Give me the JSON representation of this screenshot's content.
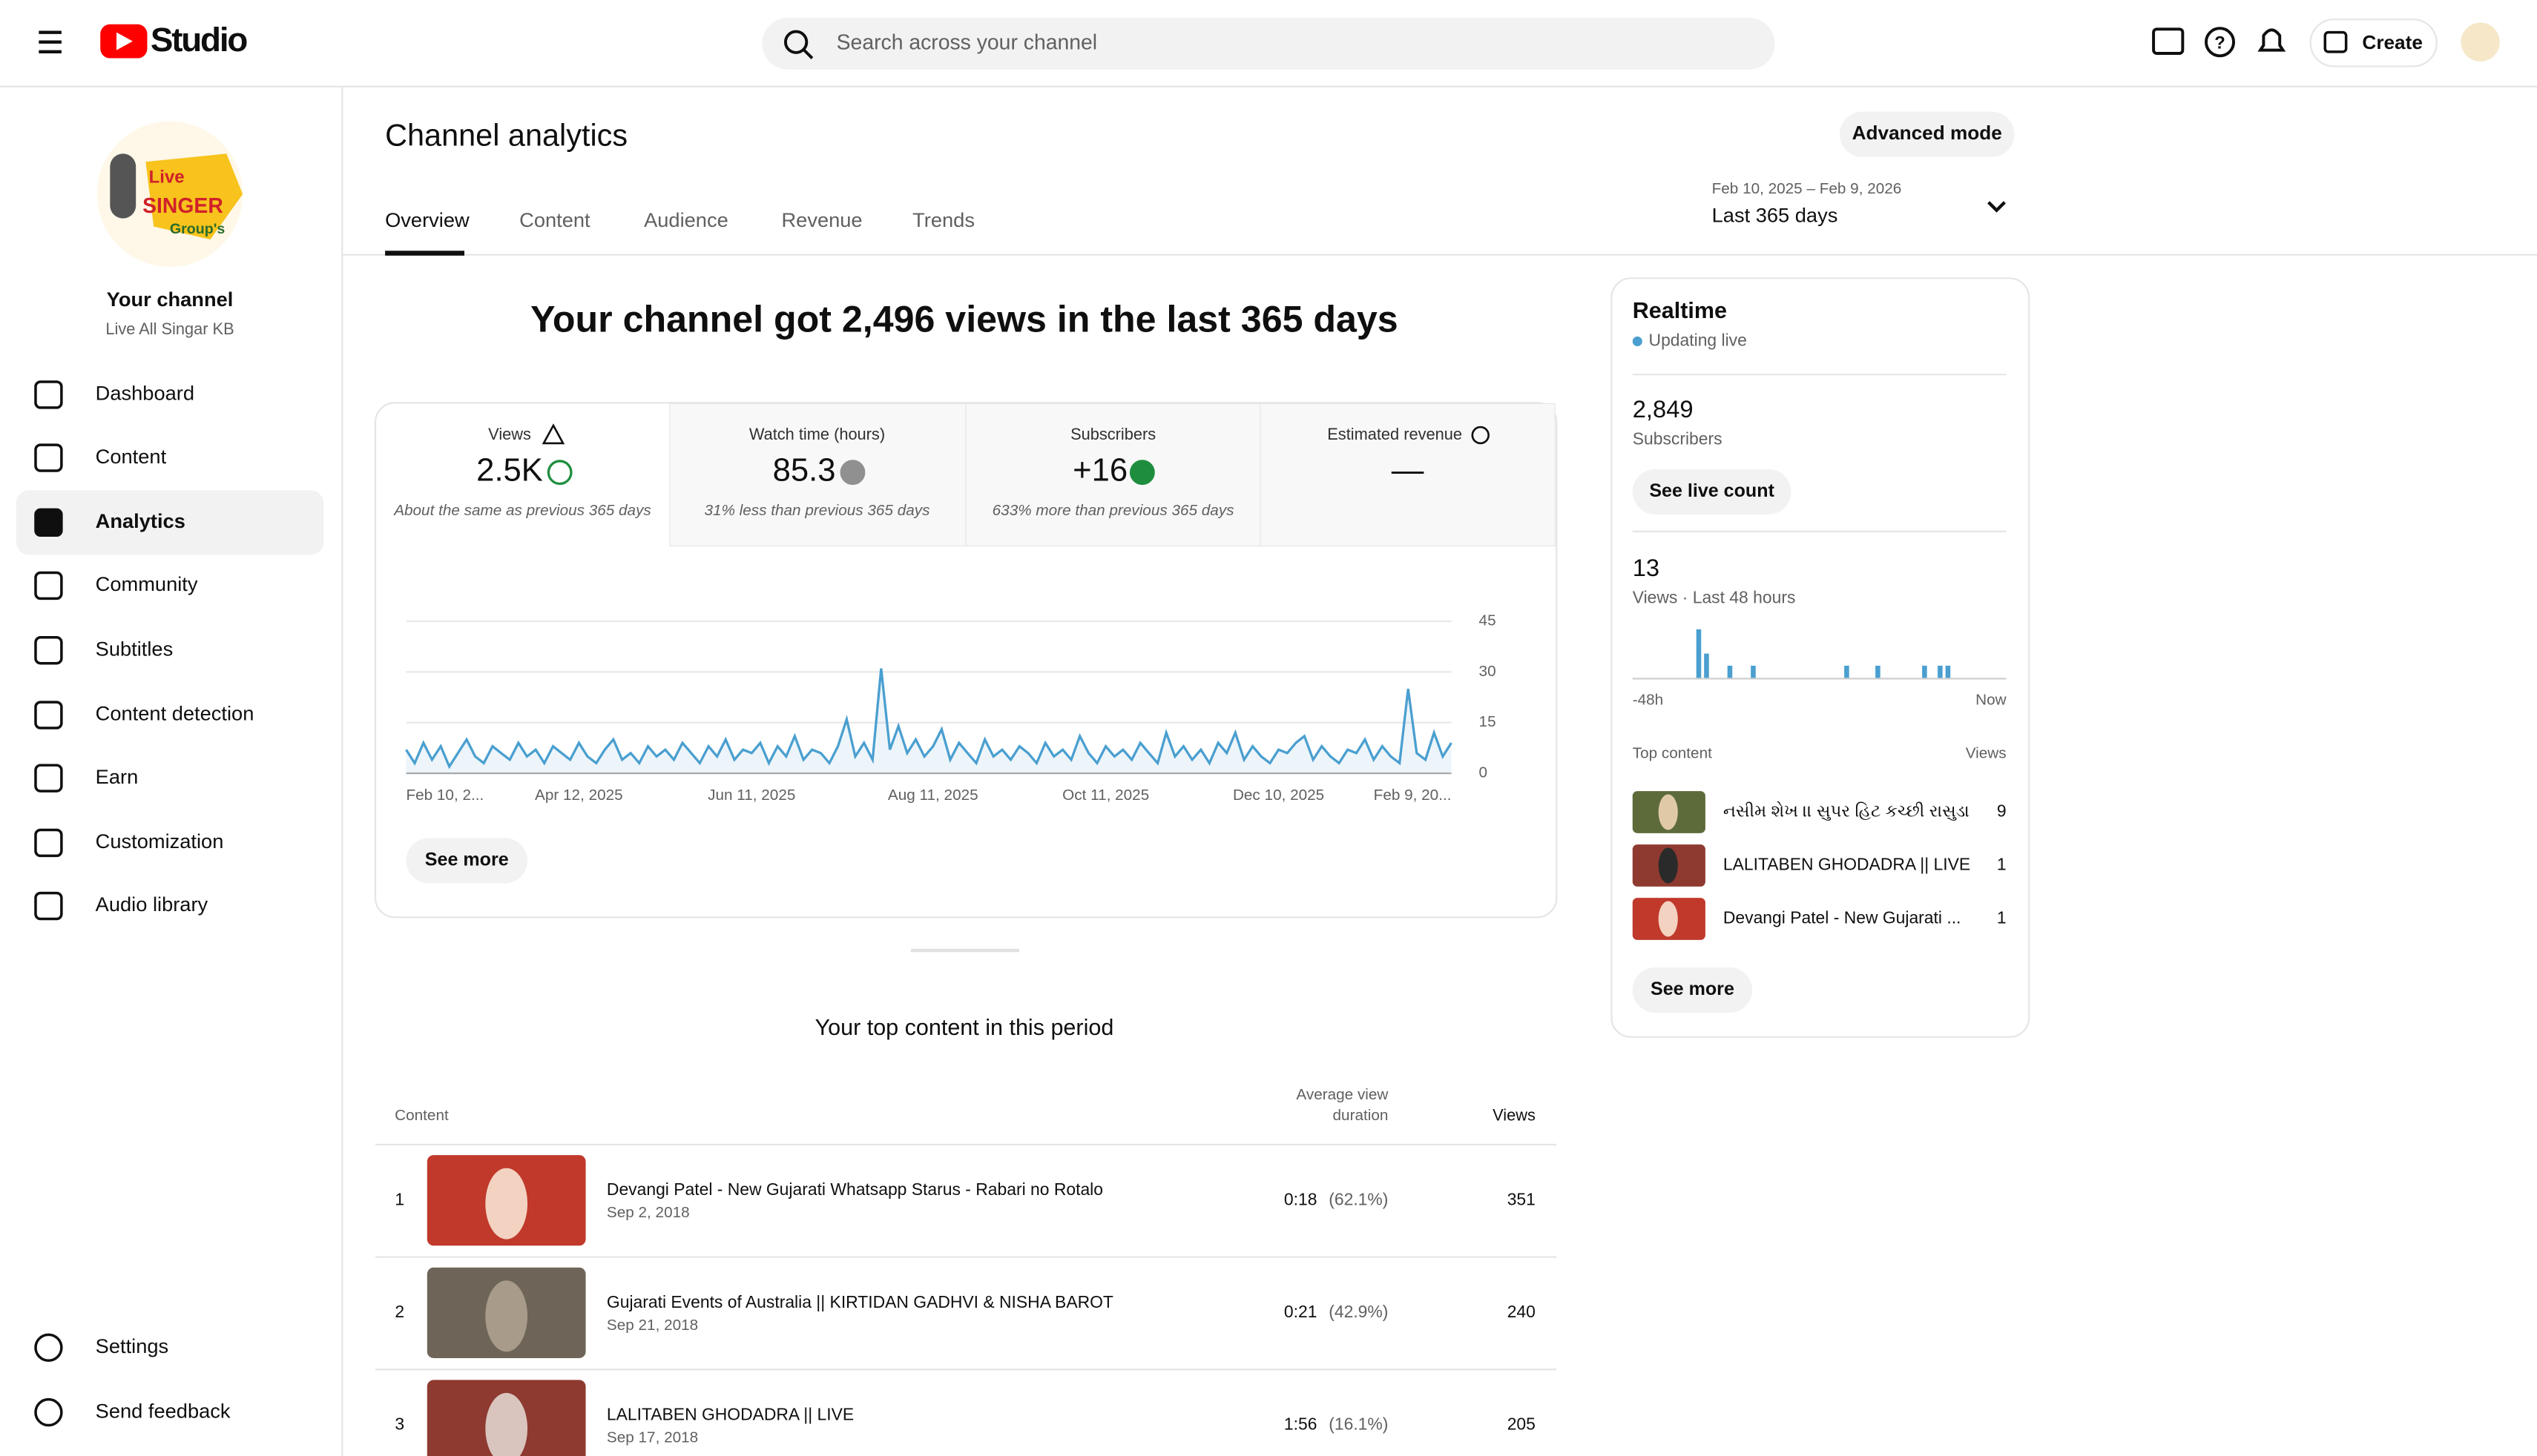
{
  "header": {
    "logo": "Studio",
    "search_placeholder": "Search across your channel",
    "create": "Create"
  },
  "sidebar": {
    "channel_title": "Your channel",
    "channel_name": "Live All Singar KB",
    "avatar_text": [
      "Live",
      "SINGER",
      "Group's"
    ],
    "nav": [
      "Dashboard",
      "Content",
      "Analytics",
      "Community",
      "Subtitles",
      "Content detection",
      "Earn",
      "Customization",
      "Audio library"
    ],
    "bottom": [
      "Settings",
      "Send feedback"
    ]
  },
  "page": {
    "title": "Channel analytics",
    "advanced": "Advanced mode",
    "tabs": [
      "Overview",
      "Content",
      "Audience",
      "Revenue",
      "Trends"
    ],
    "date_range": "Feb 10, 2025 – Feb 9, 2026",
    "period": "Last 365 days"
  },
  "overview": {
    "headline": "Your channel got 2,496 views in the last 365 days",
    "metrics": [
      {
        "label": "Views",
        "value": "2.5K",
        "note": "About the same as previous 365 days"
      },
      {
        "label": "Watch time (hours)",
        "value": "85.3",
        "note": "31% less than previous 365 days"
      },
      {
        "label": "Subscribers",
        "value": "+16",
        "note": "633% more than previous 365 days"
      },
      {
        "label": "Estimated revenue",
        "value": "—"
      }
    ],
    "see_more": "See more"
  },
  "chart_data": [
    {
      "type": "line",
      "color": "#4a9fd0",
      "values": [
        7,
        3,
        9,
        4,
        8,
        2,
        6,
        10,
        5,
        3,
        8,
        6,
        4,
        9,
        5,
        7,
        3,
        8,
        6,
        4,
        9,
        5,
        3,
        7,
        10,
        4,
        6,
        3,
        8,
        5,
        7,
        4,
        9,
        6,
        3,
        8,
        5,
        10,
        4,
        7,
        6,
        9,
        3,
        8,
        5,
        11,
        4,
        7,
        6,
        3,
        8,
        16,
        5,
        9,
        4,
        31,
        7,
        14,
        6,
        10,
        5,
        8,
        13,
        4,
        9,
        6,
        3,
        10,
        5,
        7,
        4,
        8,
        6,
        3,
        9,
        5,
        7,
        4,
        11,
        6,
        3,
        8,
        5,
        7,
        4,
        9,
        6,
        3,
        12,
        5,
        8,
        4,
        7,
        3,
        9,
        6,
        12,
        4,
        8,
        5,
        3,
        7,
        6,
        9,
        11,
        4,
        8,
        5,
        3,
        7,
        6,
        10,
        4,
        8,
        5,
        3,
        25,
        6,
        4,
        12,
        5,
        9
      ],
      "xlim": [
        0,
        121
      ],
      "xticks": [
        {
          "value": 0,
          "label": "Feb 10, 2..."
        },
        {
          "value": 20,
          "label": "Apr 12, 2025"
        },
        {
          "value": 40,
          "label": "Jun 11, 2025"
        },
        {
          "value": 61,
          "label": "Aug 11, 2025"
        },
        {
          "value": 81,
          "label": "Oct 11, 2025"
        },
        {
          "value": 101,
          "label": "Dec 10, 2025"
        },
        {
          "value": 121,
          "label": "Feb 9, 20..."
        }
      ],
      "ylim": [
        0,
        45
      ],
      "yticks": [
        0,
        15,
        30,
        45
      ],
      "grid": true
    },
    {
      "type": "bar",
      "color": "#4a9fd0",
      "values": [
        0,
        0,
        0,
        0,
        0,
        0,
        0,
        0,
        4,
        2,
        0,
        0,
        1,
        0,
        0,
        1,
        0,
        0,
        0,
        0,
        0,
        0,
        0,
        0,
        0,
        0,
        0,
        1,
        0,
        0,
        0,
        1,
        0,
        0,
        0,
        0,
        0,
        1,
        0,
        1,
        1,
        0,
        0,
        0,
        0,
        0,
        0,
        0
      ],
      "ylim": [
        0,
        4
      ]
    }
  ],
  "realtime": {
    "title": "Realtime",
    "status": "Updating live",
    "subscribers": "2,849",
    "subscribers_label": "Subscribers",
    "live_count": "See live count",
    "views": "13",
    "views_label": "Views · Last 48 hours",
    "range_start": "-48h",
    "range_end": "Now",
    "top_label": "Top content",
    "views_header": "Views",
    "top": [
      {
        "title": "નસીમ શેખ ।। સુપર હિટ કચ્છી રાસુડા",
        "views": 9
      },
      {
        "title": "LALITABEN GHODADRA || LIVE",
        "views": 1
      },
      {
        "title": "Devangi Patel - New Gujarati ...",
        "views": 1
      }
    ],
    "see_more": "See more"
  },
  "top_content": {
    "title": "Your top content in this period",
    "content_header": "Content",
    "avg_header": [
      "Average view",
      "duration"
    ],
    "views_header": "Views",
    "rows": [
      {
        "rank": 1,
        "title": "Devangi Patel - New Gujarati Whatsapp Starus - Rabari no Rotalo",
        "date": "Sep 2, 2018",
        "duration": "0:18",
        "percent": "(62.1%)",
        "views": 351
      },
      {
        "rank": 2,
        "title": "Gujarati Events of Australia || KIRTIDAN GADHVI & NISHA BAROT",
        "date": "Sep 21, 2018",
        "duration": "0:21",
        "percent": "(42.9%)",
        "views": 240
      },
      {
        "rank": 3,
        "title": "LALITABEN GHODADRA || LIVE",
        "date": "Sep 17, 2018",
        "duration": "1:56",
        "percent": "(16.1%)",
        "views": 205
      }
    ]
  }
}
